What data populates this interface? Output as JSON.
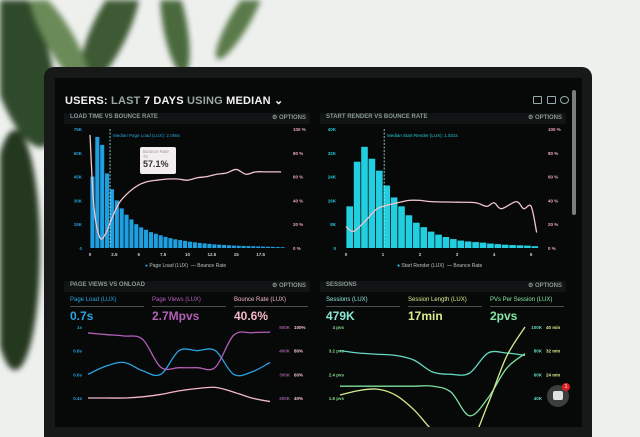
{
  "header": {
    "title_parts": [
      "USERS:",
      "LAST",
      "7 DAYS",
      "USING",
      "MEDIAN"
    ],
    "icons": [
      "monitor-icon",
      "chart-icon",
      "help-icon"
    ]
  },
  "panels": [
    {
      "title": "LOAD TIME VS BOUNCE RATE",
      "options": "OPTIONS"
    },
    {
      "title": "START RENDER VS BOUNCE RATE",
      "options": "OPTIONS"
    },
    {
      "title": "PAGE VIEWS VS ONLOAD",
      "options": "OPTIONS",
      "metrics": [
        {
          "label": "Page Load (LUX)",
          "value": "0.7s",
          "color": "#2aa3e0"
        },
        {
          "label": "Page Views (LUX)",
          "value": "2.7Mpvs",
          "color": "#b35fb8"
        },
        {
          "label": "Bounce Rate (LUX)",
          "value": "40.6%",
          "color": "#f5b8c6"
        }
      ]
    },
    {
      "title": "SESSIONS",
      "options": "OPTIONS",
      "metrics": [
        {
          "label": "Sessions (LUX)",
          "value": "479K",
          "color": "#8ee6d6"
        },
        {
          "label": "Session Length (LUX)",
          "value": "17min",
          "color": "#d9ec8e"
        },
        {
          "label": "PVs Per Session (LUX)",
          "value": "2pvs",
          "color": "#86e6a6"
        }
      ]
    }
  ],
  "chat": {
    "badge": "1"
  },
  "colors": {
    "blue": "#1e9fe0",
    "cyan": "#22cfe0",
    "pink": "#f2c4cc",
    "purple": "#b35fb8",
    "teal": "#66d8c2",
    "yellow": "#d9ec8e",
    "green": "#7fe0a0"
  },
  "chart_data": [
    {
      "type": "bar+line",
      "title": "LOAD TIME VS BOUNCE RATE",
      "annotation": "Median Page Load (LUX): 2.056s",
      "median": 2.056,
      "x": {
        "lim": [
          0,
          20
        ],
        "ticks": [
          0,
          2.5,
          5,
          7.5,
          10,
          12.5,
          15,
          17.5
        ],
        "labels": [
          "0",
          "2.5",
          "5",
          "7.5",
          "10",
          "12.5",
          "15",
          "17.5"
        ]
      },
      "axes": {
        "left": {
          "lim": [
            0,
            75
          ],
          "ticks": [
            0,
            15,
            30,
            45,
            60,
            75
          ],
          "labels": [
            "0",
            "15K",
            "30K",
            "45K",
            "60K",
            "75K"
          ],
          "color": "#2a9fd6"
        },
        "right": {
          "lim": [
            0,
            100
          ],
          "ticks": [
            0,
            20,
            40,
            60,
            80,
            100
          ],
          "labels": [
            "0 %",
            "20 %",
            "40 %",
            "60 %",
            "80 %",
            "100 %"
          ],
          "color": "#e8a8b8"
        }
      },
      "bars": {
        "name": "Page Load (LUX)",
        "bin_width": 0.5,
        "color": "#1e9fe0",
        "x": [
          0,
          0.5,
          1,
          1.5,
          2,
          2.5,
          3,
          3.5,
          4,
          4.5,
          5,
          5.5,
          6,
          6.5,
          7,
          7.5,
          8,
          8.5,
          9,
          9.5,
          10,
          10.5,
          11,
          11.5,
          12,
          12.5,
          13,
          13.5,
          14,
          14.5,
          15,
          15.5,
          16,
          16.5,
          17,
          17.5,
          18,
          18.5,
          19,
          19.5
        ],
        "values": [
          45,
          70,
          65,
          47,
          37,
          30,
          25,
          21,
          18,
          15,
          13,
          11.5,
          10,
          9,
          8,
          7,
          6.2,
          5.5,
          5,
          4.5,
          4,
          3.6,
          3.2,
          2.9,
          2.6,
          2.3,
          2.1,
          1.9,
          1.7,
          1.5,
          1.4,
          1.3,
          1.2,
          1.1,
          1,
          0.9,
          0.8,
          0.7,
          0.6,
          0.5
        ]
      },
      "lines": [
        {
          "name": "Bounce Rate",
          "axis": "right",
          "color": "#f2c4cc",
          "x": [
            0,
            0.4,
            1,
            1.6,
            2.2,
            3,
            4,
            5,
            6,
            7,
            8,
            9,
            10,
            11,
            12,
            13,
            14,
            15,
            16,
            17,
            18,
            19.6
          ],
          "values": [
            95,
            35,
            9,
            12,
            24,
            38,
            47,
            53,
            56,
            57.1,
            58,
            58,
            57,
            59,
            60,
            62,
            63,
            66,
            62,
            64,
            64,
            64
          ]
        }
      ],
      "legend": [
        "Page Load (LUX)",
        "Bounce Rate"
      ],
      "tooltip": {
        "title": "Bounce Rate",
        "x_label": "7s",
        "value": "57.1%"
      }
    },
    {
      "type": "bar+line",
      "title": "START RENDER VS BOUNCE RATE",
      "annotation": "Median Start Render (LUX): 1.031s",
      "median": 1.031,
      "x": {
        "lim": [
          0,
          5.2
        ],
        "ticks": [
          0,
          1,
          2,
          3,
          4,
          5
        ],
        "labels": [
          "0",
          "1",
          "2",
          "3",
          "4",
          "5"
        ]
      },
      "axes": {
        "left": {
          "lim": [
            0,
            40
          ],
          "ticks": [
            0,
            8,
            16,
            24,
            32,
            40
          ],
          "labels": [
            "0",
            "8K",
            "16K",
            "24K",
            "32K",
            "40K"
          ],
          "color": "#22c8d8"
        },
        "right": {
          "lim": [
            0,
            100
          ],
          "ticks": [
            0,
            20,
            40,
            60,
            80,
            100
          ],
          "labels": [
            "0 %",
            "20 %",
            "40 %",
            "60 %",
            "80 %",
            "100 %"
          ],
          "color": "#e8a8b8"
        }
      },
      "bars": {
        "name": "Start Render (LUX)",
        "bin_width": 0.2,
        "color": "#22cfe0",
        "x": [
          0.1,
          0.3,
          0.5,
          0.7,
          0.9,
          1.1,
          1.3,
          1.5,
          1.7,
          1.9,
          2.1,
          2.3,
          2.5,
          2.7,
          2.9,
          3.1,
          3.3,
          3.5,
          3.7,
          3.9,
          4.1,
          4.3,
          4.5,
          4.7,
          4.9,
          5.1
        ],
        "values": [
          14,
          29,
          34,
          30,
          26,
          21,
          17,
          14,
          11,
          8.5,
          7,
          5.5,
          4.5,
          3.7,
          3,
          2.5,
          2.2,
          2,
          1.8,
          1.5,
          1.3,
          1.1,
          1,
          0.9,
          0.8,
          0.6
        ]
      },
      "lines": [
        {
          "name": "Bounce Rate",
          "axis": "right",
          "color": "#f2c4cc",
          "x": [
            0,
            0.2,
            0.5,
            0.8,
            1,
            1.4,
            1.7,
            2,
            2.3,
            3,
            3.5,
            3.8,
            4,
            4.2,
            4.6,
            4.8,
            5,
            5.15
          ],
          "values": [
            18,
            14,
            22,
            32,
            35,
            38,
            40,
            40,
            39,
            38.5,
            38,
            35,
            38,
            33,
            39,
            33,
            35,
            13
          ]
        }
      ],
      "legend": [
        "Start Render (LUX)",
        "Bounce Rate"
      ]
    },
    {
      "type": "line",
      "title": "PAGE VIEWS VS ONLOAD",
      "x": {
        "lim": [
          0,
          10
        ]
      },
      "axes": {
        "left": {
          "lim": [
            0.4,
            1
          ],
          "ticks": [
            0.4,
            0.6,
            0.8,
            1
          ],
          "labels": [
            "0.4s",
            "0.6s",
            "0.8s",
            "1s"
          ],
          "color": "#2a9fd6"
        },
        "right": {
          "lim": [
            200,
            500
          ],
          "ticks": [
            200,
            300,
            400,
            500
          ],
          "labels": [
            "200K",
            "300K",
            "400K",
            "500K"
          ],
          "color": "#9a5a9e"
        },
        "right2": {
          "lim": [
            40,
            100
          ],
          "ticks": [
            40,
            60,
            80,
            100
          ],
          "labels": [
            "40%",
            "60%",
            "80%",
            "100%"
          ],
          "color": "#f5c0cc"
        }
      },
      "lines": [
        {
          "name": "Page Load (LUX)",
          "axis": "left",
          "color": "#2aa3e0",
          "x": [
            0,
            1,
            2,
            3,
            4,
            5,
            6,
            7,
            8,
            9,
            10
          ],
          "values": [
            0.6,
            0.67,
            0.7,
            0.63,
            0.6,
            0.8,
            0.8,
            0.8,
            0.6,
            0.62,
            0.7
          ]
        },
        {
          "name": "Page Views (LUX)",
          "axis": "right",
          "color": "#b35fb8",
          "x": [
            0,
            1,
            2,
            3,
            4,
            5,
            6,
            7,
            8,
            9,
            10
          ],
          "values": [
            475,
            468,
            462,
            448,
            330,
            328,
            328,
            330,
            465,
            476,
            478
          ]
        },
        {
          "name": "Bounce Rate (LUX)",
          "axis": "right2",
          "color": "#f5b8c6",
          "x": [
            0,
            1,
            2,
            3,
            4,
            5,
            6,
            7,
            8,
            9,
            10
          ],
          "values": [
            40,
            40,
            40,
            41,
            43,
            46,
            48,
            49,
            45,
            40,
            37
          ]
        }
      ]
    },
    {
      "type": "line",
      "title": "SESSIONS",
      "x": {
        "lim": [
          0,
          10
        ]
      },
      "axes": {
        "left": {
          "lim": [
            1.6,
            4
          ],
          "ticks": [
            1.6,
            2.4,
            3.2,
            4
          ],
          "labels": [
            "1.6 pvs",
            "2.4 pvs",
            "3.2 pvs",
            "4 pvs"
          ],
          "color": "#86d890"
        },
        "right": {
          "lim": [
            40,
            100
          ],
          "ticks": [
            40,
            60,
            80,
            100
          ],
          "labels": [
            "40K",
            "60K",
            "80K",
            "100K"
          ],
          "color": "#66d8c2"
        },
        "right2": {
          "lim": [
            16,
            40
          ],
          "ticks": [
            24,
            32,
            40
          ],
          "labels": [
            "24 min",
            "32 min",
            "40 min"
          ],
          "color": "#d9ec8e"
        }
      },
      "lines": [
        {
          "name": "Sessions (LUX)",
          "axis": "right",
          "color": "#66d8c2",
          "x": [
            0,
            1,
            2,
            3,
            4,
            5,
            6,
            7,
            8,
            9,
            10
          ],
          "values": [
            80,
            78,
            77,
            76,
            72,
            62,
            60,
            61,
            78,
            78,
            76
          ]
        },
        {
          "name": "PVs Per Session (LUX)",
          "axis": "left",
          "color": "#7fe0a0",
          "x": [
            0,
            1,
            2,
            3,
            4,
            5,
            6,
            7,
            8,
            9,
            10
          ],
          "values": [
            2.0,
            2.0,
            2.0,
            2.0,
            2.0,
            2.0,
            1.8,
            1.0,
            1.6,
            2.6,
            3.1
          ]
        },
        {
          "name": "Session Length (LUX)",
          "axis": "right2",
          "color": "#d9ec8e",
          "x": [
            0,
            1,
            2,
            3,
            4,
            5,
            6,
            7,
            8,
            9,
            10
          ],
          "values": [
            17,
            18.5,
            19,
            17,
            12,
            5,
            0,
            0,
            14,
            30,
            40
          ]
        }
      ]
    }
  ]
}
